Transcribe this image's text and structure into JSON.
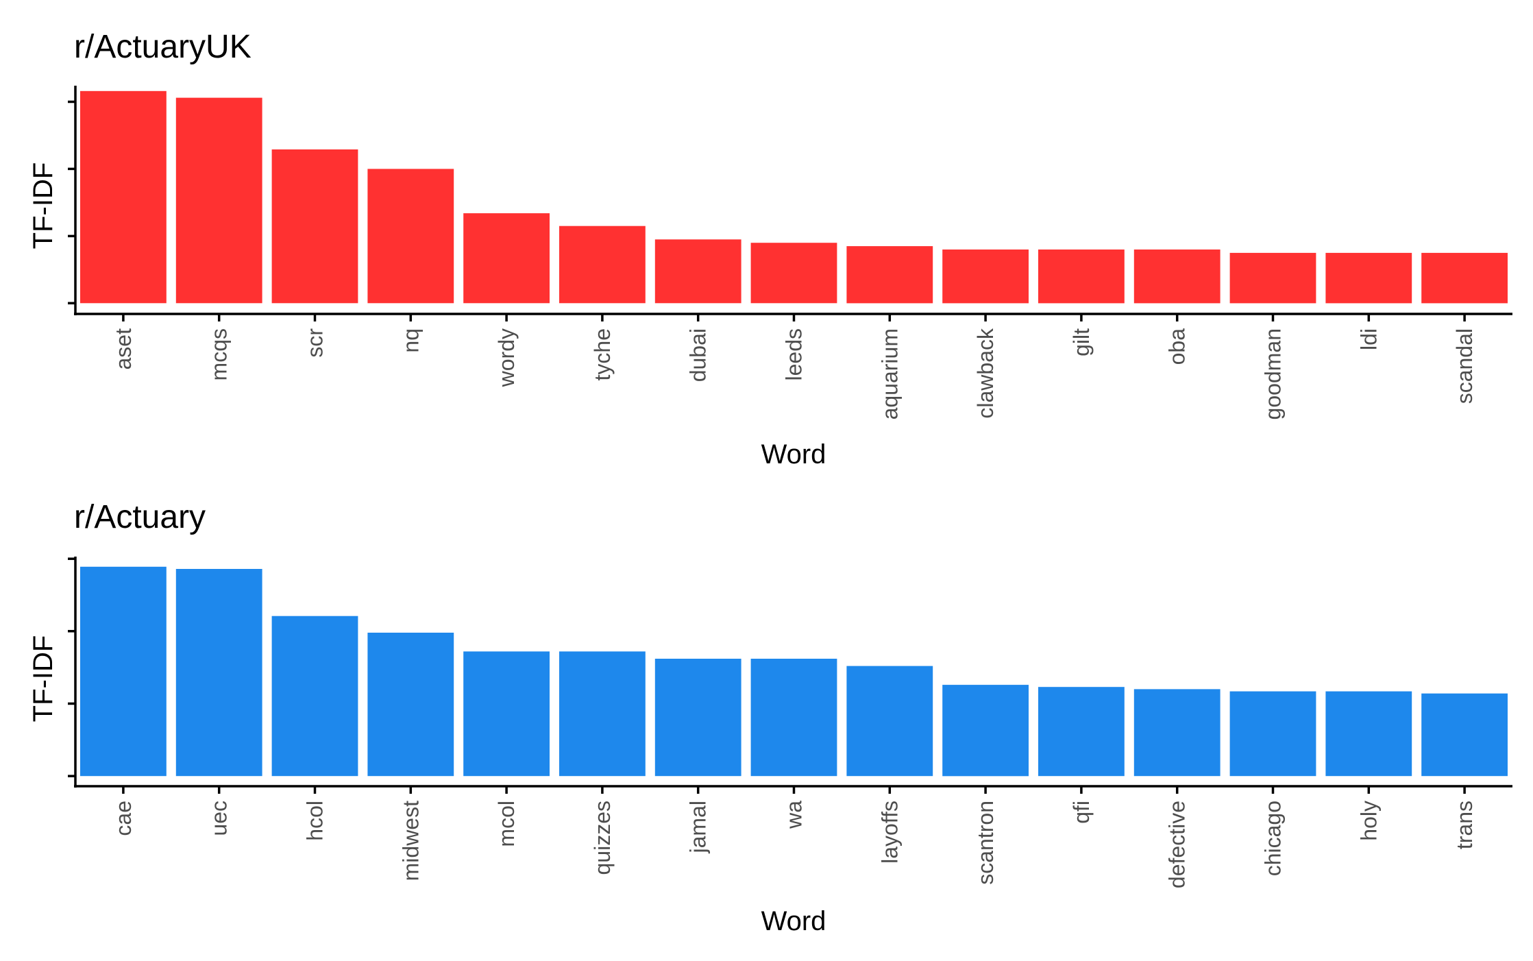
{
  "chart_data": [
    {
      "type": "bar",
      "title": "r/ActuaryUK",
      "xlabel": "Word",
      "ylabel": "TF-IDF",
      "categories": [
        "aset",
        "mcqs",
        "scr",
        "nq",
        "wordy",
        "tyche",
        "dubai",
        "leeds",
        "aquarium",
        "clawback",
        "gilt",
        "oba",
        "goodman",
        "ldi",
        "scandal"
      ],
      "values": [
        0.316,
        0.306,
        0.229,
        0.2,
        0.134,
        0.115,
        0.095,
        0.09,
        0.085,
        0.08,
        0.08,
        0.08,
        0.075,
        0.075,
        0.075
      ],
      "ylim": [
        -0.016,
        0.324
      ],
      "y_ticks": [
        0,
        0.1,
        0.2,
        0.3
      ],
      "y_tick_labels_shown": false,
      "color": "#ff3131",
      "grid": false
    },
    {
      "type": "bar",
      "title": "r/Actuary",
      "xlabel": "Word",
      "ylabel": "TF-IDF",
      "categories": [
        "cae",
        "uec",
        "hcol",
        "midwest",
        "mcol",
        "quizzes",
        "jamal",
        "wa",
        "layoffs",
        "scantron",
        "qfi",
        "defective",
        "chicago",
        "holy",
        "trans"
      ],
      "values": [
        0.289,
        0.286,
        0.221,
        0.198,
        0.172,
        0.172,
        0.162,
        0.162,
        0.152,
        0.126,
        0.123,
        0.12,
        0.117,
        0.117,
        0.114
      ],
      "ylim": [
        -0.014,
        0.303
      ],
      "y_ticks": [
        0,
        0.1,
        0.2,
        0.3
      ],
      "y_tick_labels_shown": false,
      "color": "#1e88ec",
      "grid": false
    }
  ]
}
